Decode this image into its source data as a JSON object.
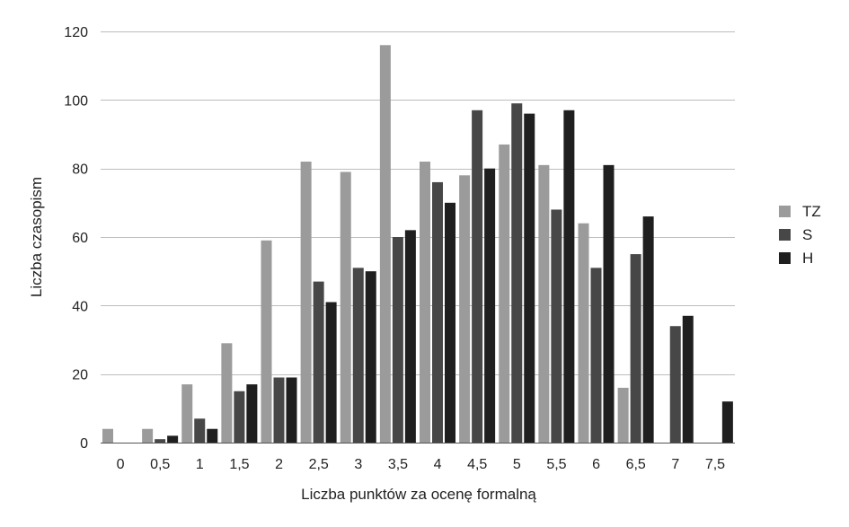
{
  "chart_data": {
    "type": "bar",
    "title": "",
    "xlabel": "Liczba punktów za ocenę formalną",
    "ylabel": "Liczba czasopism",
    "ylim": [
      0,
      120
    ],
    "yticks": [
      0,
      20,
      40,
      60,
      80,
      100,
      120
    ],
    "grid": true,
    "legend_position": "right",
    "categories": [
      "0",
      "0,5",
      "1",
      "1,5",
      "2",
      "2,5",
      "3",
      "3,5",
      "4",
      "4,5",
      "5",
      "5,5",
      "6",
      "6,5",
      "7",
      "7,5"
    ],
    "series": [
      {
        "name": "TZ",
        "color": "#9b9b9b",
        "values": [
          4,
          4,
          17,
          29,
          59,
          82,
          79,
          116,
          82,
          78,
          87,
          81,
          64,
          16,
          0,
          0
        ]
      },
      {
        "name": "S",
        "color": "#474747",
        "values": [
          0,
          1,
          7,
          15,
          19,
          47,
          51,
          60,
          76,
          97,
          99,
          68,
          51,
          55,
          34,
          0
        ]
      },
      {
        "name": "H",
        "color": "#1f1f1f",
        "values": [
          0,
          2,
          4,
          17,
          19,
          41,
          50,
          62,
          70,
          80,
          96,
          97,
          81,
          66,
          37,
          12
        ]
      }
    ]
  }
}
